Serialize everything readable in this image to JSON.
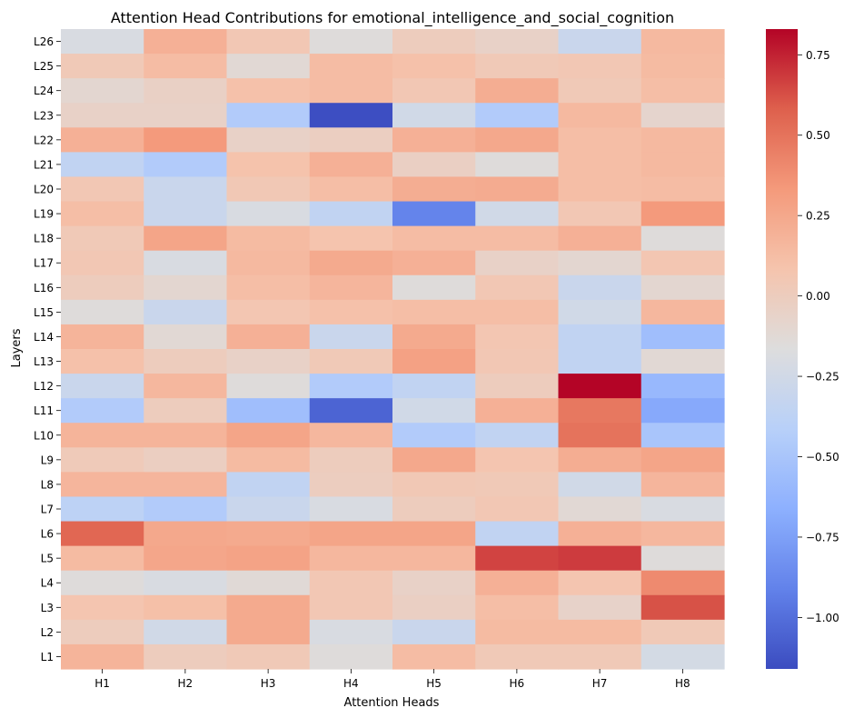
{
  "chart_data": {
    "type": "heatmap",
    "title": "Attention Head Contributions for emotional_intelligence_and_social_cognition",
    "xlabel": "Attention Heads",
    "ylabel": "Layers",
    "x_categories": [
      "H1",
      "H2",
      "H3",
      "H4",
      "H5",
      "H6",
      "H7",
      "H8"
    ],
    "y_categories": [
      "L26",
      "L25",
      "L24",
      "L23",
      "L22",
      "L21",
      "L20",
      "L19",
      "L18",
      "L17",
      "L16",
      "L15",
      "L14",
      "L13",
      "L12",
      "L11",
      "L10",
      "L9",
      "L8",
      "L7",
      "L6",
      "L5",
      "L4",
      "L3",
      "L2",
      "L1"
    ],
    "values": [
      [
        -0.2,
        0.2,
        0.05,
        -0.15,
        0.0,
        -0.05,
        -0.3,
        0.15
      ],
      [
        0.03,
        0.13,
        -0.12,
        0.13,
        0.1,
        0.03,
        0.05,
        0.14
      ],
      [
        -0.1,
        -0.04,
        0.1,
        0.13,
        0.05,
        0.22,
        0.03,
        0.12
      ],
      [
        -0.05,
        -0.05,
        -0.45,
        -1.15,
        -0.25,
        -0.45,
        0.15,
        -0.08
      ],
      [
        0.2,
        0.33,
        -0.05,
        -0.02,
        0.2,
        0.25,
        0.12,
        0.15
      ],
      [
        -0.35,
        -0.45,
        0.09,
        0.2,
        -0.03,
        -0.15,
        0.12,
        0.15
      ],
      [
        0.05,
        -0.3,
        0.04,
        0.12,
        0.22,
        0.23,
        0.12,
        0.13
      ],
      [
        0.12,
        -0.3,
        -0.2,
        -0.35,
        -0.9,
        -0.25,
        0.05,
        0.33
      ],
      [
        0.03,
        0.27,
        0.14,
        0.08,
        0.13,
        0.13,
        0.2,
        -0.15
      ],
      [
        0.05,
        -0.2,
        0.15,
        0.24,
        0.2,
        -0.05,
        -0.1,
        0.06
      ],
      [
        0.0,
        -0.1,
        0.12,
        0.17,
        -0.15,
        0.05,
        -0.3,
        -0.1
      ],
      [
        -0.15,
        -0.3,
        0.06,
        0.1,
        0.12,
        0.12,
        -0.25,
        0.16
      ],
      [
        0.18,
        -0.12,
        0.2,
        -0.3,
        0.24,
        0.06,
        -0.35,
        -0.55
      ],
      [
        0.1,
        0.0,
        -0.05,
        0.03,
        0.29,
        0.05,
        -0.35,
        -0.12
      ],
      [
        -0.3,
        0.16,
        -0.15,
        -0.45,
        -0.35,
        0.0,
        0.83,
        -0.6
      ],
      [
        -0.45,
        0.0,
        -0.55,
        -1.05,
        -0.25,
        0.2,
        0.48,
        -0.7
      ],
      [
        0.18,
        0.18,
        0.27,
        0.16,
        -0.45,
        -0.35,
        0.5,
        -0.5
      ],
      [
        0.02,
        -0.02,
        0.14,
        0.0,
        0.25,
        0.07,
        0.22,
        0.27
      ],
      [
        0.17,
        0.17,
        -0.35,
        -0.01,
        0.04,
        0.03,
        -0.25,
        0.17
      ],
      [
        -0.38,
        -0.45,
        -0.3,
        -0.2,
        0.0,
        0.05,
        -0.12,
        -0.2
      ],
      [
        0.55,
        0.25,
        0.24,
        0.27,
        0.27,
        -0.35,
        0.2,
        0.16
      ],
      [
        0.14,
        0.26,
        0.28,
        0.16,
        0.16,
        0.66,
        0.68,
        -0.15
      ],
      [
        -0.15,
        -0.2,
        -0.13,
        0.05,
        -0.05,
        0.2,
        0.07,
        0.4
      ],
      [
        0.07,
        0.11,
        0.24,
        0.05,
        -0.03,
        0.12,
        -0.06,
        0.62
      ],
      [
        0.0,
        -0.25,
        0.24,
        -0.2,
        -0.3,
        0.14,
        0.14,
        0.03
      ],
      [
        0.18,
        0.0,
        0.03,
        -0.15,
        0.13,
        0.03,
        0.03,
        -0.23
      ]
    ],
    "color_scale": {
      "colormap": "coolwarm",
      "vmin": -1.16,
      "vmax": 0.83,
      "ticks": [
        -1.0,
        -0.75,
        -0.5,
        -0.25,
        0.0,
        0.25,
        0.5,
        0.75
      ],
      "tick_labels": [
        "−1.00",
        "−0.75",
        "−0.50",
        "−0.25",
        "0.00",
        "0.25",
        "0.50",
        "0.75"
      ]
    },
    "grid": false,
    "legend": "colorbar-right"
  }
}
